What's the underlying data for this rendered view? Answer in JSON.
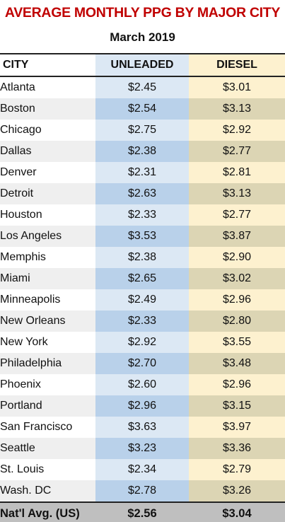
{
  "title": "AVERAGE MONTHLY PPG BY MAJOR CITY",
  "subtitle": "March 2019",
  "chart_data": {
    "type": "table",
    "title": "AVERAGE MONTHLY PPG BY MAJOR CITY",
    "subtitle": "March 2019",
    "columns": [
      "CITY",
      "UNLEADED",
      "DIESEL"
    ],
    "rows": [
      {
        "city": "Atlanta",
        "unleaded": "$2.45",
        "diesel": "$3.01"
      },
      {
        "city": "Boston",
        "unleaded": "$2.54",
        "diesel": "$3.13"
      },
      {
        "city": "Chicago",
        "unleaded": "$2.75",
        "diesel": "$2.92"
      },
      {
        "city": "Dallas",
        "unleaded": "$2.38",
        "diesel": "$2.77"
      },
      {
        "city": "Denver",
        "unleaded": "$2.31",
        "diesel": "$2.81"
      },
      {
        "city": "Detroit",
        "unleaded": "$2.63",
        "diesel": "$3.13"
      },
      {
        "city": "Houston",
        "unleaded": "$2.33",
        "diesel": "$2.77"
      },
      {
        "city": "Los Angeles",
        "unleaded": "$3.53",
        "diesel": "$3.87"
      },
      {
        "city": "Memphis",
        "unleaded": "$2.38",
        "diesel": "$2.90"
      },
      {
        "city": "Miami",
        "unleaded": "$2.65",
        "diesel": "$3.02"
      },
      {
        "city": "Minneapolis",
        "unleaded": "$2.49",
        "diesel": "$2.96"
      },
      {
        "city": "New Orleans",
        "unleaded": "$2.33",
        "diesel": "$2.80"
      },
      {
        "city": "New York",
        "unleaded": "$2.92",
        "diesel": "$3.55"
      },
      {
        "city": "Philadelphia",
        "unleaded": "$2.70",
        "diesel": "$3.48"
      },
      {
        "city": "Phoenix",
        "unleaded": "$2.60",
        "diesel": "$2.96"
      },
      {
        "city": "Portland",
        "unleaded": "$2.96",
        "diesel": "$3.15"
      },
      {
        "city": "San Francisco",
        "unleaded": "$3.63",
        "diesel": "$3.97"
      },
      {
        "city": "Seattle",
        "unleaded": "$3.23",
        "diesel": "$3.36"
      },
      {
        "city": "St. Louis",
        "unleaded": "$2.34",
        "diesel": "$2.79"
      },
      {
        "city": "Wash. DC",
        "unleaded": "$2.78",
        "diesel": "$3.26"
      }
    ],
    "average": {
      "city": "Nat'l Avg. (US)",
      "unleaded": "$2.56",
      "diesel": "$3.04"
    }
  },
  "colors": {
    "title": "#c00000",
    "unleaded_light": "#dce8f4",
    "unleaded_dark": "#b9d1ea",
    "diesel_light": "#fdf1cf",
    "diesel_dark": "#dcd5b4",
    "average_row": "#bfbfbf"
  }
}
